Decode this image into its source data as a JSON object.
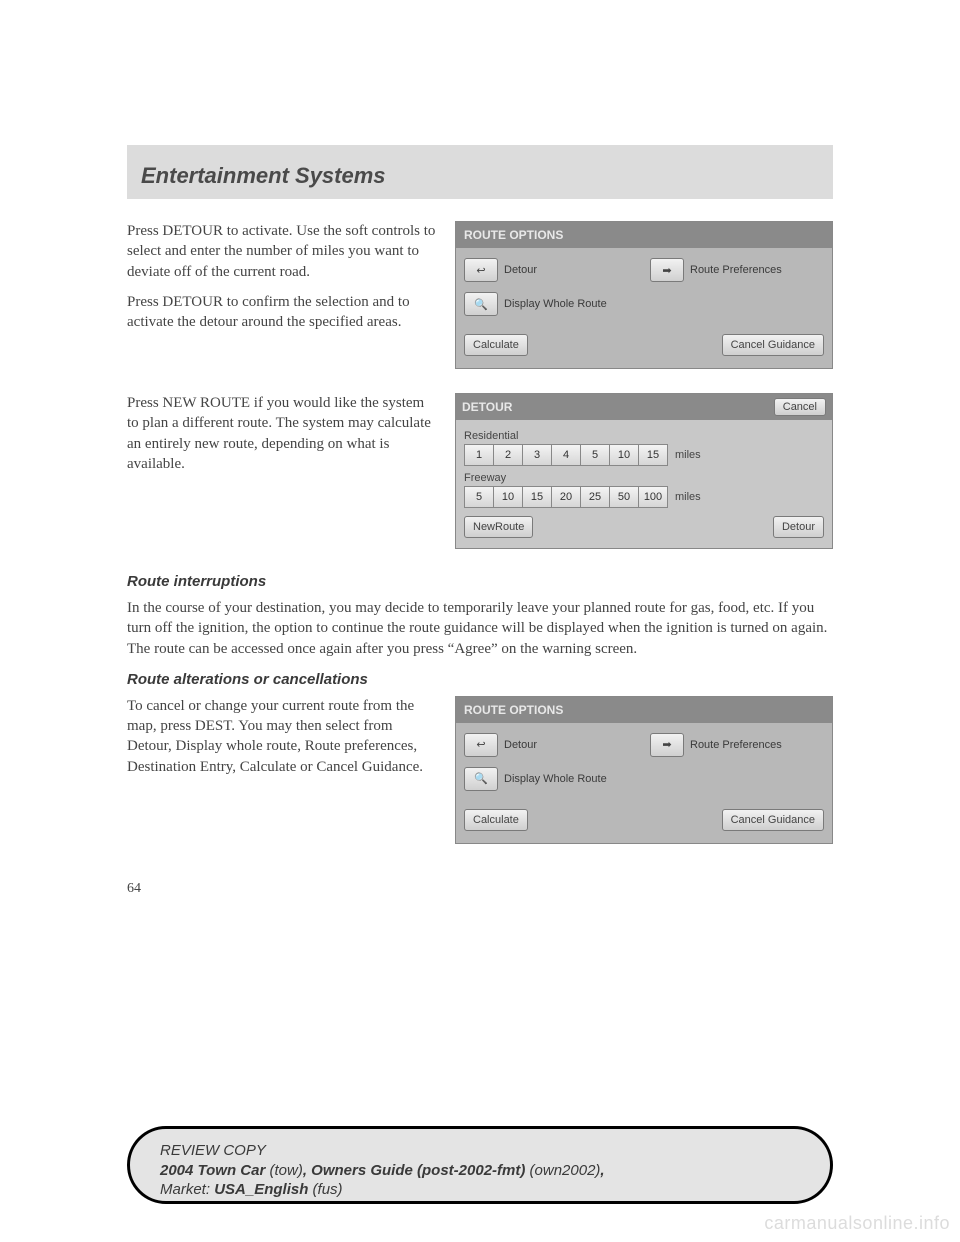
{
  "header": {
    "title": "Entertainment Systems"
  },
  "page_number": "64",
  "section1": {
    "para1": "Press DETOUR to activate. Use the soft controls to select and enter the number of miles you want to deviate off of the current road.",
    "para2": "Press DETOUR to confirm the selection and to activate the detour around the specified areas."
  },
  "route_options": {
    "title": "ROUTE OPTIONS",
    "detour_icon": "↩",
    "detour_label": "Detour",
    "prefs_icon": "➡",
    "prefs_label": "Route Preferences",
    "display_icon": "🔍",
    "display_label": "Display Whole Route",
    "calculate": "Calculate",
    "cancel": "Cancel Guidance"
  },
  "section2": {
    "para1": "Press NEW ROUTE if you would like the system to plan a different route. The system may calculate an entirely new route, depending on what is available."
  },
  "detour_ui": {
    "title": "DETOUR",
    "cancel": "Cancel",
    "residential_label": "Residential",
    "residential": [
      "1",
      "2",
      "3",
      "4",
      "5",
      "10",
      "15"
    ],
    "freeway_label": "Freeway",
    "freeway": [
      "5",
      "10",
      "15",
      "20",
      "25",
      "50",
      "100"
    ],
    "miles": "miles",
    "new_route": "NewRoute",
    "detour_btn": "Detour"
  },
  "route_interruptions": {
    "heading": "Route interruptions",
    "para": "In the course of your destination, you may decide to temporarily leave your planned route for gas, food, etc. If you turn off the ignition, the option to continue the route guidance will be displayed when the ignition is turned on again. The route can be accessed once again after you press “Agree” on the warning screen."
  },
  "route_alterations": {
    "heading": "Route alterations or cancellations",
    "para": "To cancel or change your current route from the map, press DEST. You may then select from Detour, Display whole route, Route preferences, Destination Entry, Calculate or Cancel Guidance."
  },
  "footer": {
    "line1_italic": "REVIEW COPY",
    "line2_bold": "2004 Town Car",
    "line2_italic1": " (tow)",
    "line2_bold2": ", Owners Guide (post-2002-fmt)",
    "line2_italic2": " (own2002)",
    "line2_end": ",",
    "line3_label": "Market: ",
    "line3_bold": "USA_English",
    "line3_italic": " (fus)"
  },
  "watermark": "carmanualsonline.info"
}
